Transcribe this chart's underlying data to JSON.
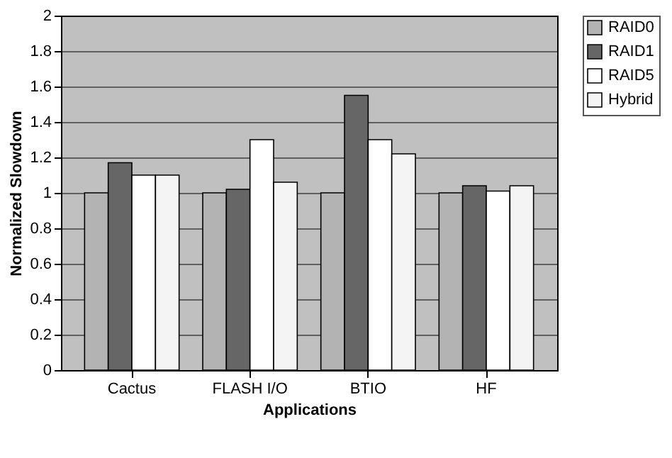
{
  "chart_data": {
    "type": "bar",
    "xlabel": "Applications",
    "ylabel": "Normalized Slowdown",
    "categories": [
      "Cactus",
      "FLASH I/O",
      "BTIO",
      "HF"
    ],
    "series": [
      {
        "name": "RAID0",
        "color": "#b3b3b3",
        "values": [
          1.0,
          1.0,
          1.0,
          1.0
        ]
      },
      {
        "name": "RAID1",
        "color": "#666666",
        "values": [
          1.17,
          1.02,
          1.55,
          1.04
        ]
      },
      {
        "name": "RAID5",
        "color": "#ffffff",
        "values": [
          1.1,
          1.3,
          1.3,
          1.01
        ]
      },
      {
        "name": "Hybrid",
        "color": "#f4f4f4",
        "values": [
          1.1,
          1.06,
          1.22,
          1.04
        ]
      }
    ],
    "ylim": [
      0,
      2
    ],
    "yticks": [
      0,
      0.2,
      0.4,
      0.6,
      0.8,
      1,
      1.2,
      1.4,
      1.6,
      1.8,
      2
    ],
    "grid": "y",
    "legend": "right"
  }
}
